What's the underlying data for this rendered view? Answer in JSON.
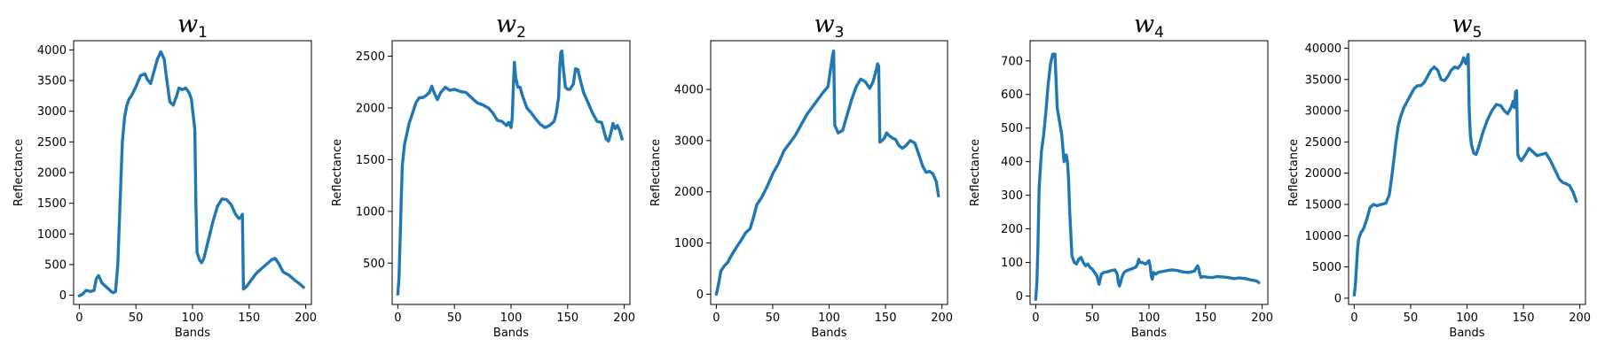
{
  "figure": {
    "line_color": "#1f77b4"
  },
  "chart_data": [
    {
      "type": "line",
      "title": "w1",
      "title_parts": {
        "main": "w",
        "sub": "1"
      },
      "xlabel": "Bands",
      "ylabel": "Reflectance",
      "xlim": [
        -5,
        205
      ],
      "ylim": [
        -150,
        4150
      ],
      "xticks": [
        0,
        50,
        100,
        150,
        200
      ],
      "yticks": [
        0,
        500,
        1000,
        1500,
        2000,
        2500,
        3000,
        3500,
        4000
      ],
      "grid": false,
      "series": [
        {
          "x": [
            0,
            3,
            6,
            10,
            13,
            15,
            17,
            20,
            23,
            26,
            28,
            30,
            32,
            34,
            36,
            38,
            40,
            42,
            44,
            46,
            50,
            54,
            58,
            60,
            63,
            66,
            69,
            72,
            75,
            77,
            80,
            83,
            86,
            88,
            91,
            94,
            97,
            99,
            102,
            103,
            104,
            106,
            108,
            110,
            114,
            118,
            122,
            126,
            130,
            134,
            138,
            141,
            143,
            144,
            145,
            148,
            152,
            156,
            160,
            165,
            170,
            173,
            176,
            180,
            185,
            190,
            195,
            198
          ],
          "y": [
            -10,
            20,
            80,
            60,
            80,
            270,
            320,
            200,
            150,
            100,
            60,
            40,
            60,
            500,
            1500,
            2500,
            2900,
            3100,
            3200,
            3250,
            3400,
            3580,
            3610,
            3520,
            3450,
            3650,
            3850,
            3970,
            3850,
            3550,
            3150,
            3100,
            3250,
            3380,
            3350,
            3380,
            3300,
            3200,
            2700,
            1500,
            700,
            580,
            530,
            600,
            900,
            1200,
            1450,
            1570,
            1560,
            1480,
            1320,
            1250,
            1280,
            1320,
            100,
            150,
            250,
            350,
            420,
            500,
            580,
            600,
            520,
            380,
            330,
            250,
            180,
            130
          ]
        }
      ]
    },
    {
      "type": "line",
      "title": "w2",
      "title_parts": {
        "main": "w",
        "sub": "2"
      },
      "xlabel": "Bands",
      "ylabel": "Reflectance",
      "xlim": [
        -5,
        205
      ],
      "ylim": [
        100,
        2650
      ],
      "xticks": [
        0,
        50,
        100,
        150,
        200
      ],
      "yticks": [
        500,
        1000,
        1500,
        2000,
        2500
      ],
      "grid": false,
      "series": [
        {
          "x": [
            0,
            1,
            2,
            3,
            4,
            6,
            8,
            10,
            13,
            16,
            19,
            22,
            25,
            28,
            30,
            32,
            35,
            38,
            42,
            46,
            50,
            55,
            60,
            65,
            70,
            75,
            80,
            84,
            88,
            92,
            96,
            98,
            100,
            101,
            102,
            103,
            104,
            106,
            108,
            110,
            114,
            118,
            122,
            126,
            130,
            134,
            138,
            140,
            142,
            143,
            144,
            145,
            146,
            148,
            150,
            152,
            155,
            157,
            159,
            161,
            164,
            168,
            172,
            176,
            180,
            184,
            186,
            188,
            190,
            192,
            194,
            196,
            198
          ],
          "y": [
            200,
            350,
            700,
            1100,
            1450,
            1650,
            1750,
            1850,
            1950,
            2050,
            2100,
            2100,
            2120,
            2150,
            2210,
            2150,
            2080,
            2150,
            2200,
            2170,
            2180,
            2160,
            2150,
            2100,
            2050,
            2030,
            2000,
            1950,
            1880,
            1870,
            1830,
            1860,
            1810,
            1900,
            2200,
            2440,
            2300,
            2200,
            2200,
            2120,
            2000,
            1950,
            1890,
            1840,
            1810,
            1830,
            1870,
            1950,
            2100,
            2400,
            2540,
            2550,
            2400,
            2200,
            2180,
            2180,
            2230,
            2380,
            2370,
            2280,
            2150,
            2050,
            1950,
            1870,
            1860,
            1700,
            1680,
            1750,
            1850,
            1800,
            1830,
            1780,
            1700
          ]
        }
      ]
    },
    {
      "type": "line",
      "title": "w3",
      "title_parts": {
        "main": "w",
        "sub": "3"
      },
      "xlabel": "Bands",
      "ylabel": "Reflectance",
      "xlim": [
        -5,
        205
      ],
      "ylim": [
        -200,
        4950
      ],
      "xticks": [
        0,
        50,
        100,
        150,
        200
      ],
      "yticks": [
        0,
        1000,
        2000,
        3000,
        4000
      ],
      "grid": false,
      "series": [
        {
          "x": [
            0,
            2,
            4,
            7,
            10,
            14,
            18,
            22,
            26,
            30,
            33,
            36,
            40,
            45,
            50,
            55,
            60,
            65,
            70,
            75,
            80,
            85,
            90,
            95,
            99,
            101,
            103,
            104,
            105,
            108,
            112,
            116,
            120,
            124,
            128,
            132,
            136,
            139,
            142,
            143,
            144,
            145,
            147,
            149,
            151,
            153,
            156,
            159,
            162,
            165,
            168,
            172,
            176,
            180,
            183,
            186,
            189,
            192,
            195,
            197
          ],
          "y": [
            0,
            200,
            450,
            550,
            620,
            780,
            920,
            1050,
            1200,
            1280,
            1500,
            1750,
            1880,
            2100,
            2350,
            2550,
            2800,
            2950,
            3100,
            3300,
            3500,
            3650,
            3800,
            3950,
            4050,
            4350,
            4650,
            4750,
            3300,
            3150,
            3200,
            3500,
            3800,
            4050,
            4200,
            4150,
            4020,
            4150,
            4400,
            4500,
            4450,
            2970,
            3000,
            3050,
            3150,
            3100,
            3050,
            3020,
            2900,
            2850,
            2900,
            3000,
            2950,
            2700,
            2500,
            2380,
            2400,
            2350,
            2200,
            1920
          ]
        }
      ]
    },
    {
      "type": "line",
      "title": "w4",
      "title_parts": {
        "main": "w",
        "sub": "4"
      },
      "xlabel": "Bands",
      "ylabel": "Reflectance",
      "xlim": [
        -5,
        205
      ],
      "ylim": [
        -25,
        760
      ],
      "xticks": [
        0,
        50,
        100,
        150,
        200
      ],
      "yticks": [
        0,
        100,
        200,
        300,
        400,
        500,
        600,
        700
      ],
      "grid": false,
      "series": [
        {
          "x": [
            0,
            1,
            2,
            3,
            5,
            7,
            9,
            11,
            13,
            15,
            17,
            19,
            21,
            23,
            25,
            27,
            28,
            29,
            30,
            32,
            34,
            36,
            38,
            40,
            42,
            44,
            46,
            48,
            50,
            52,
            54,
            56,
            57,
            58,
            60,
            63,
            66,
            70,
            72,
            73,
            74,
            75,
            76,
            78,
            80,
            84,
            88,
            90,
            91,
            92,
            94,
            97,
            100,
            101,
            102,
            103,
            104,
            106,
            108,
            110,
            115,
            120,
            125,
            130,
            135,
            140,
            143,
            144,
            145,
            146,
            148,
            152,
            156,
            160,
            165,
            170,
            175,
            180,
            185,
            190,
            195,
            197
          ],
          "y": [
            -10,
            40,
            150,
            320,
            430,
            480,
            550,
            630,
            690,
            720,
            720,
            560,
            520,
            480,
            400,
            420,
            400,
            350,
            250,
            120,
            100,
            95,
            110,
            115,
            100,
            90,
            95,
            85,
            80,
            70,
            60,
            35,
            50,
            65,
            70,
            72,
            75,
            78,
            65,
            40,
            30,
            40,
            55,
            70,
            75,
            80,
            85,
            95,
            110,
            100,
            100,
            95,
            105,
            90,
            60,
            50,
            70,
            65,
            70,
            72,
            75,
            78,
            76,
            72,
            70,
            74,
            90,
            80,
            65,
            55,
            58,
            56,
            55,
            58,
            57,
            55,
            52,
            54,
            52,
            48,
            45,
            40
          ]
        }
      ]
    },
    {
      "type": "line",
      "title": "w5",
      "title_parts": {
        "main": "w",
        "sub": "5"
      },
      "xlabel": "Bands",
      "ylabel": "Reflectance",
      "xlim": [
        -5,
        205
      ],
      "ylim": [
        -1000,
        41200
      ],
      "xticks": [
        0,
        50,
        100,
        150,
        200
      ],
      "yticks": [
        0,
        5000,
        10000,
        15000,
        20000,
        25000,
        30000,
        35000,
        40000
      ],
      "grid": false,
      "series": [
        {
          "x": [
            0,
            1,
            2,
            3,
            4,
            6,
            8,
            11,
            14,
            17,
            20,
            24,
            28,
            31,
            33,
            35,
            37,
            39,
            41,
            44,
            47,
            50,
            53,
            56,
            59,
            62,
            65,
            68,
            71,
            74,
            77,
            80,
            83,
            86,
            89,
            92,
            95,
            97,
            99,
            101,
            102,
            103,
            104,
            106,
            108,
            110,
            114,
            118,
            122,
            126,
            130,
            133,
            136,
            139,
            141,
            142,
            143,
            144,
            145,
            146,
            148,
            150,
            152,
            155,
            158,
            162,
            166,
            170,
            174,
            178,
            182,
            185,
            188,
            191,
            194,
            197
          ],
          "y": [
            500,
            2000,
            5000,
            8000,
            9500,
            10500,
            11000,
            12500,
            14500,
            15000,
            14800,
            15000,
            15200,
            16500,
            19000,
            22000,
            25000,
            27500,
            29000,
            30500,
            31500,
            32500,
            33500,
            34000,
            34000,
            34500,
            35500,
            36500,
            37000,
            36500,
            35000,
            34800,
            35500,
            36500,
            37000,
            36800,
            37500,
            38500,
            37500,
            39000,
            30000,
            26000,
            24500,
            23200,
            23000,
            24000,
            26500,
            28500,
            30000,
            31000,
            30800,
            30000,
            29500,
            30500,
            31500,
            30500,
            33000,
            33200,
            23000,
            22500,
            22000,
            22500,
            23000,
            24000,
            23500,
            22800,
            23000,
            23200,
            22000,
            20500,
            19000,
            18500,
            18300,
            18000,
            17000,
            15500
          ]
        }
      ]
    }
  ]
}
